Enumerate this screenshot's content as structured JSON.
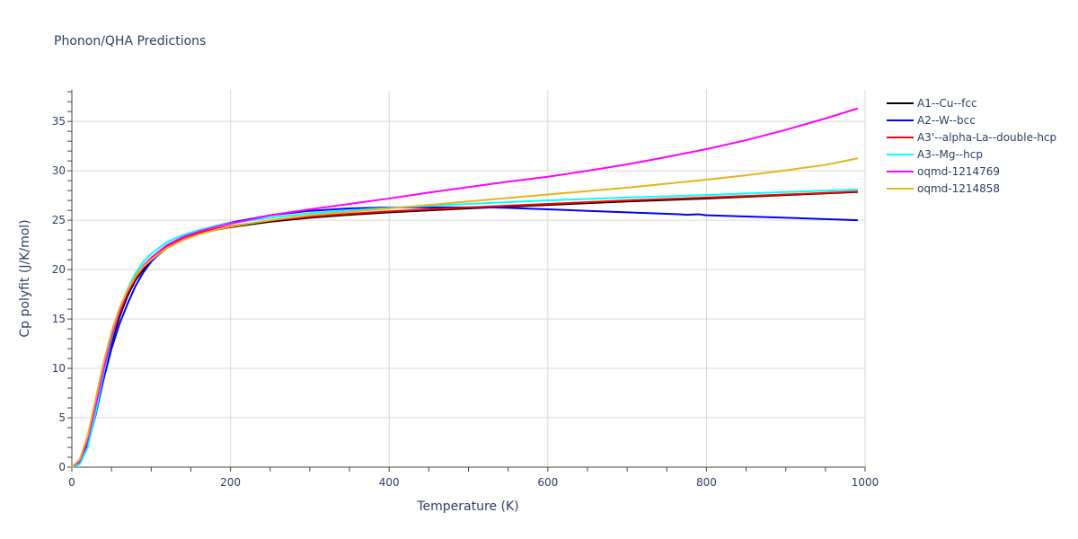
{
  "chart_data": {
    "type": "line",
    "title": "Phonon/QHA Predictions",
    "xlabel": "Temperature (K)",
    "ylabel": "Cp polyfit (J/K/mol)",
    "xlim": [
      0,
      1000
    ],
    "ylim": [
      0,
      38.2
    ],
    "xticks": [
      0,
      200,
      400,
      600,
      800,
      1000
    ],
    "yticks": [
      0,
      5,
      10,
      15,
      20,
      25,
      30,
      35
    ],
    "grid": true,
    "legend_position": "right",
    "series": [
      {
        "name": "A1--Cu--fcc",
        "color": "#000000",
        "x": [
          0,
          10,
          20,
          30,
          40,
          50,
          60,
          70,
          80,
          90,
          100,
          120,
          140,
          160,
          180,
          200,
          250,
          300,
          350,
          400,
          500,
          600,
          700,
          800,
          900,
          990
        ],
        "y": [
          0,
          0.6,
          2.6,
          6.0,
          9.5,
          12.6,
          15.2,
          17.3,
          18.9,
          20.0,
          20.9,
          22.2,
          23.0,
          23.6,
          24.0,
          24.3,
          24.85,
          25.25,
          25.55,
          25.8,
          26.2,
          26.55,
          26.9,
          27.2,
          27.55,
          27.85
        ]
      },
      {
        "name": "A2--W--bcc",
        "color": "#0000ff",
        "x": [
          0,
          10,
          20,
          30,
          40,
          50,
          60,
          70,
          80,
          90,
          100,
          120,
          140,
          160,
          180,
          200,
          250,
          300,
          350,
          400,
          450,
          500,
          525,
          550,
          600,
          650,
          700,
          750,
          765,
          775,
          790,
          800,
          900,
          990
        ],
        "y": [
          0,
          0.4,
          2.2,
          5.3,
          8.9,
          12.0,
          14.5,
          16.5,
          18.3,
          19.7,
          20.8,
          22.4,
          23.3,
          23.9,
          24.4,
          24.75,
          25.5,
          25.95,
          26.2,
          26.3,
          26.3,
          26.3,
          26.3,
          26.25,
          26.1,
          25.95,
          25.8,
          25.65,
          25.6,
          25.55,
          25.6,
          25.5,
          25.25,
          25.0
        ]
      },
      {
        "name": "A3'--alpha-La--double-hcp",
        "color": "#ff0000",
        "x": [
          0,
          10,
          20,
          30,
          40,
          50,
          60,
          70,
          80,
          90,
          100,
          120,
          140,
          160,
          180,
          200,
          250,
          300,
          350,
          400,
          500,
          600,
          700,
          800,
          900,
          990
        ],
        "y": [
          0,
          0.7,
          2.9,
          6.4,
          10.0,
          13.1,
          15.6,
          17.6,
          19.1,
          20.2,
          21.0,
          22.3,
          23.1,
          23.7,
          24.1,
          24.4,
          24.95,
          25.35,
          25.65,
          25.9,
          26.3,
          26.65,
          27.0,
          27.3,
          27.6,
          27.9
        ]
      },
      {
        "name": "A3--Mg--hcp",
        "color": "#00ffff",
        "x": [
          0,
          10,
          20,
          30,
          40,
          50,
          60,
          70,
          80,
          90,
          100,
          120,
          140,
          160,
          180,
          200,
          250,
          300,
          350,
          400,
          500,
          600,
          700,
          800,
          900,
          990
        ],
        "y": [
          0,
          0.3,
          2.0,
          5.5,
          9.5,
          13.0,
          15.9,
          18.0,
          19.6,
          20.8,
          21.6,
          22.8,
          23.5,
          24.0,
          24.4,
          24.7,
          25.25,
          25.7,
          26.0,
          26.25,
          26.65,
          27.0,
          27.3,
          27.55,
          27.85,
          28.1
        ]
      },
      {
        "name": "oqmd-1214769",
        "color": "#ff00ff",
        "x": [
          0,
          10,
          20,
          30,
          40,
          50,
          60,
          70,
          80,
          90,
          100,
          120,
          140,
          160,
          180,
          200,
          250,
          300,
          350,
          400,
          450,
          500,
          550,
          600,
          650,
          700,
          750,
          800,
          850,
          900,
          950,
          990
        ],
        "y": [
          0,
          0.6,
          2.7,
          6.2,
          9.9,
          13.2,
          15.8,
          17.8,
          19.3,
          20.4,
          21.2,
          22.5,
          23.3,
          23.85,
          24.3,
          24.65,
          25.5,
          26.1,
          26.65,
          27.2,
          27.8,
          28.35,
          28.9,
          29.4,
          30.0,
          30.65,
          31.4,
          32.2,
          33.1,
          34.15,
          35.3,
          36.3
        ]
      },
      {
        "name": "oqmd-1214858",
        "color": "#e6b31e",
        "x": [
          0,
          10,
          20,
          30,
          40,
          50,
          60,
          70,
          80,
          90,
          100,
          120,
          140,
          160,
          180,
          200,
          250,
          300,
          350,
          400,
          450,
          500,
          550,
          600,
          650,
          700,
          750,
          800,
          850,
          900,
          950,
          990
        ],
        "y": [
          0,
          0.8,
          3.2,
          6.9,
          10.6,
          13.7,
          16.1,
          17.9,
          19.3,
          20.3,
          21.0,
          22.2,
          23.0,
          23.55,
          24.0,
          24.35,
          25.0,
          25.5,
          25.85,
          26.2,
          26.55,
          26.9,
          27.25,
          27.6,
          27.95,
          28.3,
          28.7,
          29.1,
          29.55,
          30.05,
          30.6,
          31.25
        ]
      }
    ]
  }
}
